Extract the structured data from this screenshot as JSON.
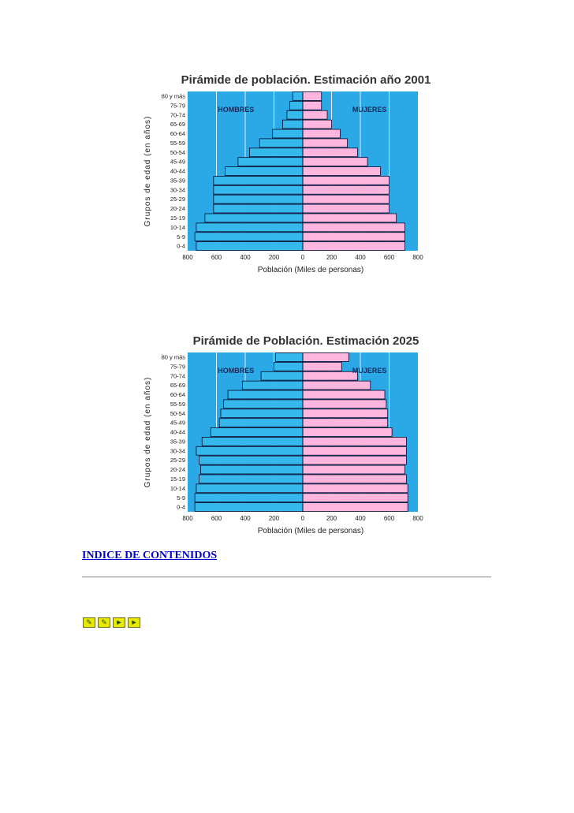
{
  "chart_data": [
    {
      "type": "population-pyramid",
      "title": "Pirámide de población.  Estimación año 2001",
      "xlabel": "Población  (Miles de personas)",
      "ylabel": "Grupos de edad  (en años)",
      "left_label": "HOMBRES",
      "right_label": "MUJERES",
      "xlim": [
        0,
        800
      ],
      "ticks_left": [
        "800",
        "600",
        "400",
        "200"
      ],
      "ticks_right": [
        "0",
        "200",
        "400",
        "600",
        "800"
      ],
      "age_groups": [
        "80 y más",
        "75-79",
        "70-74",
        "65-69",
        "60-64",
        "55-59",
        "50-54",
        "45-49",
        "40-44",
        "35-39",
        "30-34",
        "25-29",
        "20-24",
        "15-19",
        "10-14",
        "5-9",
        "0-4"
      ],
      "series": [
        {
          "name": "HOMBRES",
          "values": [
            70,
            90,
            110,
            140,
            210,
            300,
            370,
            450,
            540,
            620,
            620,
            620,
            620,
            680,
            740,
            750,
            740
          ]
        },
        {
          "name": "MUJERES",
          "values": [
            130,
            130,
            170,
            200,
            260,
            310,
            380,
            450,
            540,
            600,
            600,
            600,
            600,
            650,
            710,
            710,
            710
          ]
        }
      ]
    },
    {
      "type": "population-pyramid",
      "title": "Pirámide de Población. Estimación 2025",
      "xlabel": "Población  (Miles de personas)",
      "ylabel": "Grupos de edad  (en años)",
      "left_label": "HOMBRES",
      "right_label": "MUJERES",
      "xlim": [
        0,
        800
      ],
      "ticks_left": [
        "800",
        "600",
        "400",
        "200"
      ],
      "ticks_right": [
        "0",
        "200",
        "400",
        "600",
        "800"
      ],
      "age_groups": [
        "80 y más",
        "75-79",
        "70-74",
        "65-69",
        "60-64",
        "55-59",
        "50-54",
        "45-49",
        "40-44",
        "35-39",
        "30-34",
        "25-29",
        "20-24",
        "15-19",
        "10-14",
        "5-9",
        "0-4"
      ],
      "series": [
        {
          "name": "HOMBRES",
          "values": [
            190,
            200,
            290,
            420,
            520,
            550,
            570,
            580,
            640,
            700,
            740,
            720,
            710,
            720,
            740,
            750,
            750
          ]
        },
        {
          "name": "MUJERES",
          "values": [
            320,
            270,
            380,
            470,
            570,
            580,
            590,
            590,
            620,
            720,
            720,
            720,
            710,
            720,
            730,
            730,
            730
          ]
        }
      ]
    }
  ],
  "footer": {
    "index_link": "INDICE DE CONTENIDOS",
    "nav_icons": [
      "previous-page-icon",
      "back-icon",
      "forward-icon",
      "next-page-icon"
    ]
  }
}
